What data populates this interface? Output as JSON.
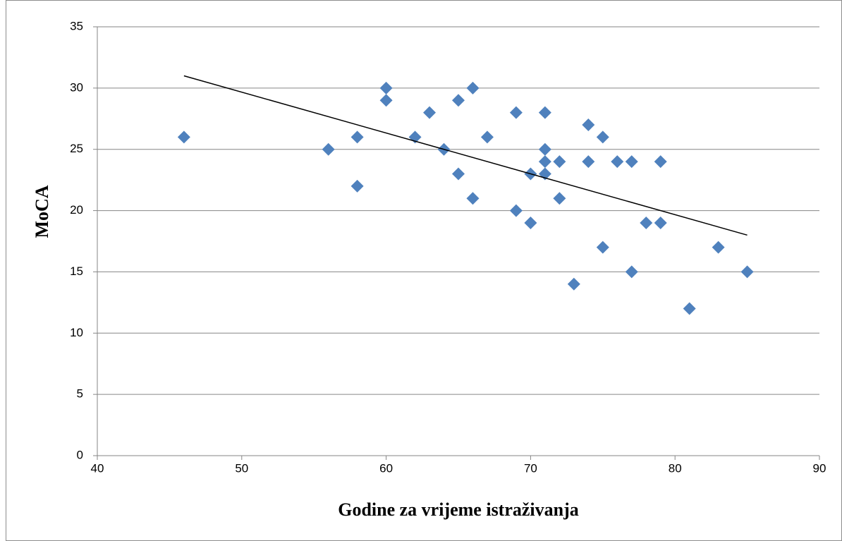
{
  "chart_data": {
    "type": "scatter",
    "x_label": "Godine za vrijeme istraživanja",
    "y_label": "MoCA",
    "color": "#4f81bd",
    "grid": true,
    "xlim": [
      40,
      90
    ],
    "xticks": [
      40,
      50,
      60,
      70,
      80,
      90
    ],
    "ylim": [
      0,
      35
    ],
    "yticks": [
      0,
      5,
      10,
      15,
      20,
      25,
      30,
      35
    ],
    "x": [
      46,
      56,
      58,
      58,
      60,
      60,
      62,
      63,
      64,
      65,
      65,
      66,
      66,
      67,
      69,
      69,
      70,
      70,
      71,
      71,
      71,
      71,
      72,
      72,
      73,
      74,
      74,
      75,
      75,
      76,
      77,
      77,
      78,
      79,
      79,
      81,
      83,
      85
    ],
    "values": [
      26,
      25,
      26,
      22,
      30,
      29,
      26,
      28,
      25,
      29,
      23,
      30,
      21,
      26,
      28,
      20,
      23,
      19,
      28,
      25,
      24,
      23,
      24,
      21,
      14,
      27,
      24,
      26,
      17,
      24,
      24,
      15,
      19,
      24,
      19,
      12,
      17,
      15
    ],
    "trendline": {
      "x": [
        46,
        85
      ],
      "values": [
        31,
        18
      ],
      "color": "#000000"
    }
  }
}
